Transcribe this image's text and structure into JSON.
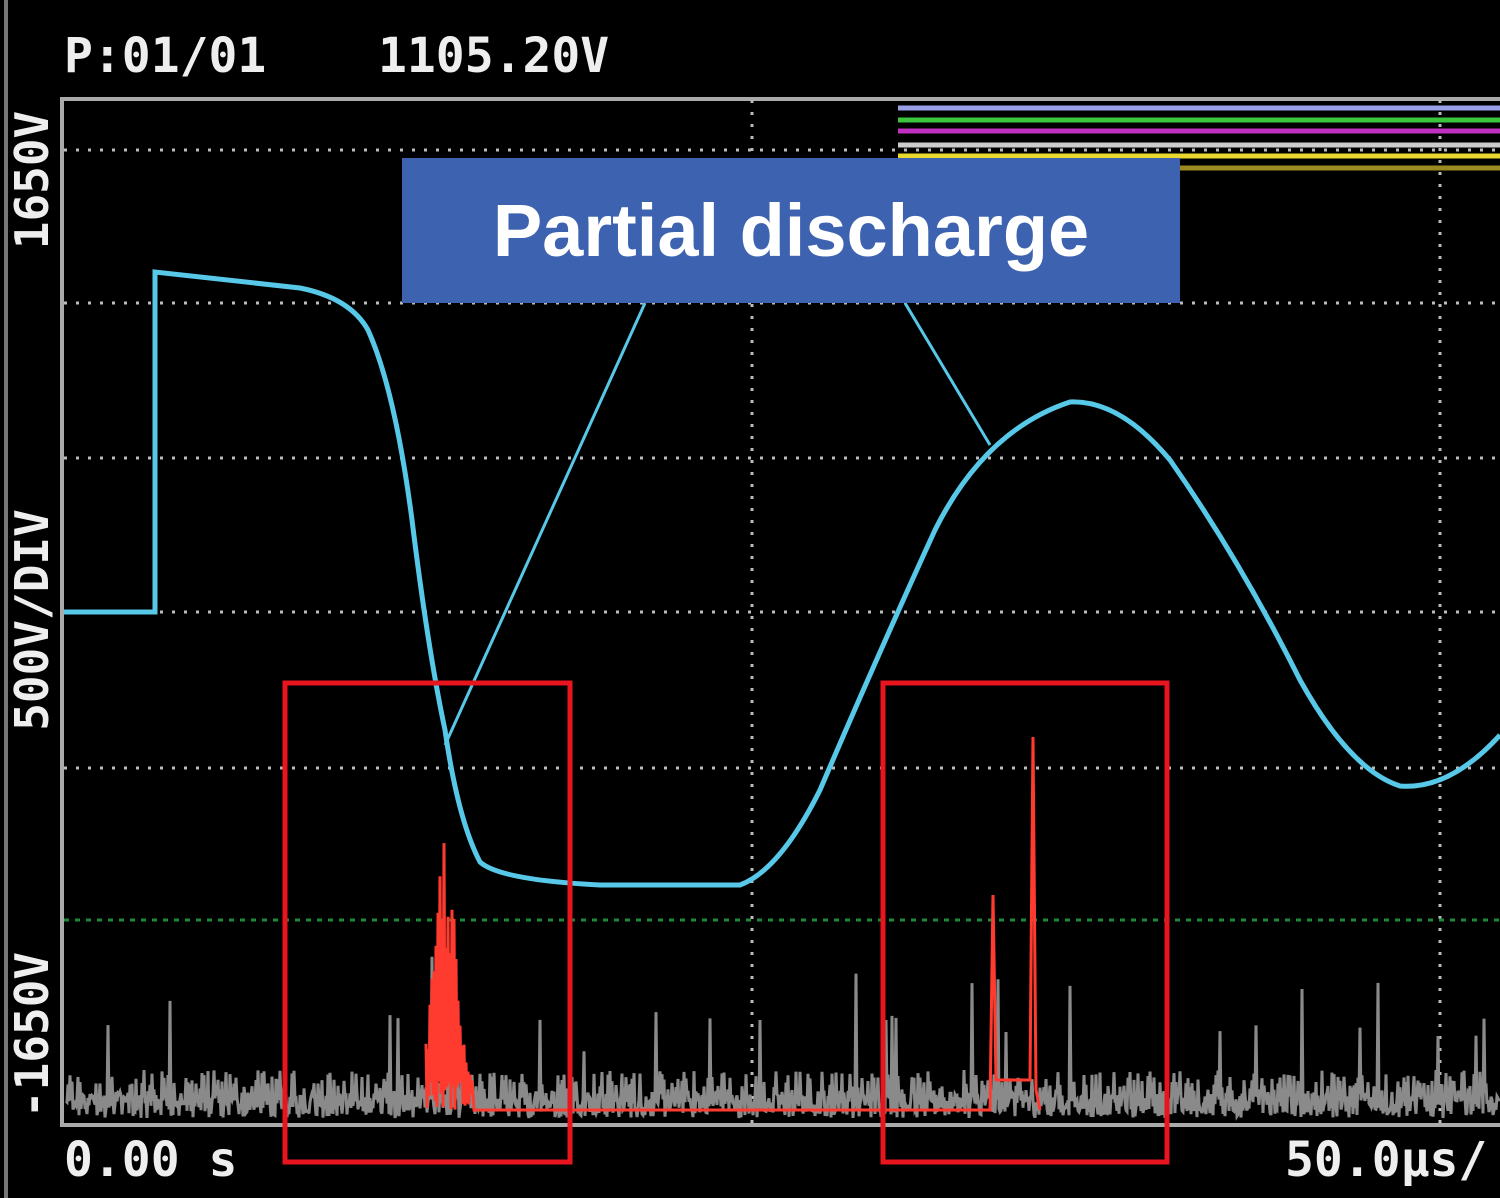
{
  "header": {
    "page": "P:01/01",
    "voltage": "1105.20V"
  },
  "axis": {
    "top": "1650V",
    "scale": "500V/DIV",
    "bottom": "-1650V",
    "start": "0.00 s",
    "timebase": "50.0µs/"
  },
  "annotation": "Partial discharge"
}
